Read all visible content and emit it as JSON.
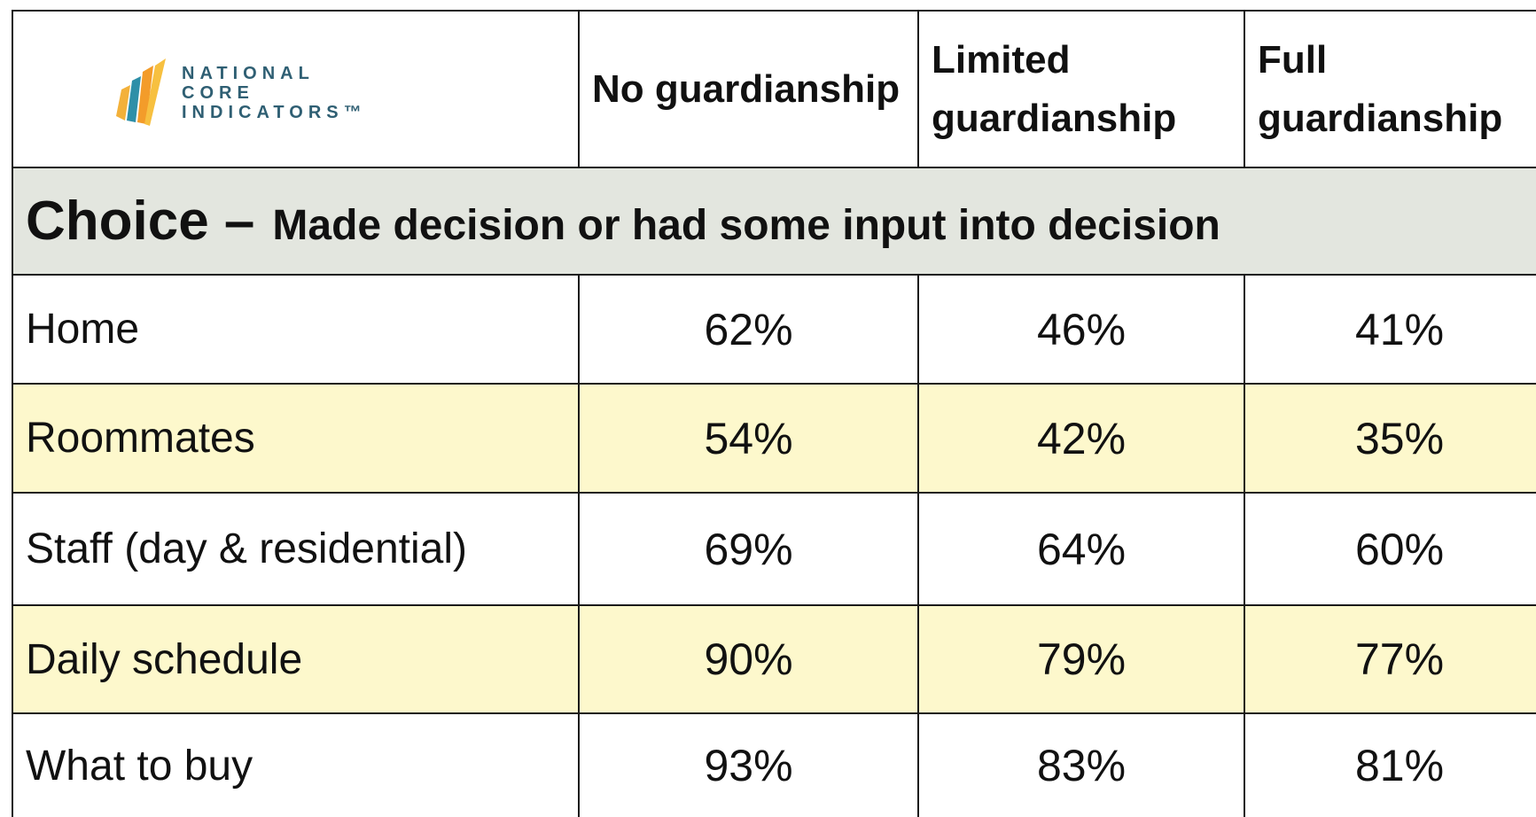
{
  "logo": {
    "lines": [
      "NATIONAL",
      "CORE",
      "INDICATORS™"
    ]
  },
  "table": {
    "header": [
      "No guardianship",
      "Limited guardianship",
      "Full guardianship"
    ],
    "section": {
      "title": "Choice –",
      "subtitle": "Made decision or had some input into decision"
    },
    "rows": [
      [
        "Home",
        "62%",
        "46%",
        "41%"
      ],
      [
        "Roommates",
        "54%",
        "42%",
        "35%"
      ],
      [
        "Staff (day & residential)",
        "69%",
        "64%",
        "60%"
      ],
      [
        "Daily schedule",
        "90%",
        "79%",
        "77%"
      ],
      [
        "What to buy",
        "93%",
        "83%",
        "81%"
      ]
    ]
  }
}
